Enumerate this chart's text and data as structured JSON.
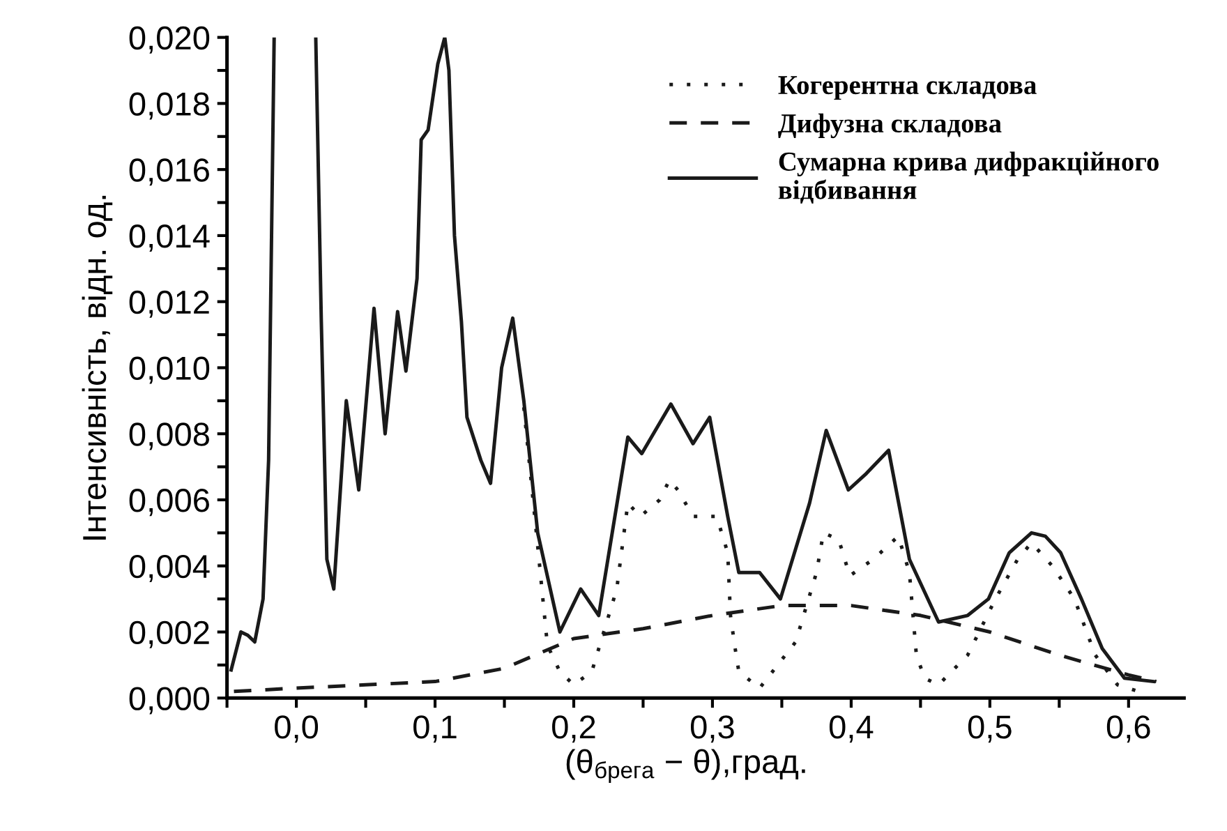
{
  "chart_data": {
    "type": "line",
    "xlabel": "(θ$_{брега}$ − θ),град.",
    "ylabel": "Інтенсивність, відн. од.",
    "xlim": [
      -0.05,
      0.64
    ],
    "ylim": [
      0,
      0.02
    ],
    "xticks": [
      {
        "value": -0.05,
        "label": null
      },
      {
        "value": 0.0,
        "label": "0,0"
      },
      {
        "value": 0.05,
        "label": null
      },
      {
        "value": 0.1,
        "label": "0,1"
      },
      {
        "value": 0.15,
        "label": null
      },
      {
        "value": 0.2,
        "label": "0,2"
      },
      {
        "value": 0.25,
        "label": null
      },
      {
        "value": 0.3,
        "label": "0,3"
      },
      {
        "value": 0.35,
        "label": null
      },
      {
        "value": 0.4,
        "label": "0,4"
      },
      {
        "value": 0.45,
        "label": null
      },
      {
        "value": 0.5,
        "label": "0,5"
      },
      {
        "value": 0.55,
        "label": null
      },
      {
        "value": 0.6,
        "label": "0,6"
      }
    ],
    "yticks": [
      {
        "value": 0,
        "label": "0,000"
      },
      {
        "value": 0.001,
        "label": null
      },
      {
        "value": 0.002,
        "label": "0,002"
      },
      {
        "value": 0.003,
        "label": null
      },
      {
        "value": 0.004,
        "label": "0,004"
      },
      {
        "value": 0.005,
        "label": null
      },
      {
        "value": 0.006,
        "label": "0,006"
      },
      {
        "value": 0.007,
        "label": null
      },
      {
        "value": 0.008,
        "label": "0,008"
      },
      {
        "value": 0.009,
        "label": null
      },
      {
        "value": 0.01,
        "label": "0,010"
      },
      {
        "value": 0.011,
        "label": null
      },
      {
        "value": 0.012,
        "label": "0,012"
      },
      {
        "value": 0.013,
        "label": null
      },
      {
        "value": 0.014,
        "label": "0,014"
      },
      {
        "value": 0.015,
        "label": null
      },
      {
        "value": 0.016,
        "label": "0,016"
      },
      {
        "value": 0.017,
        "label": null
      },
      {
        "value": 0.018,
        "label": "0,018"
      },
      {
        "value": 0.019,
        "label": null
      },
      {
        "value": 0.02,
        "label": "0,020"
      }
    ],
    "grid": false,
    "legend": "top right",
    "marker": "none",
    "series": [
      {
        "name": "Когерентна складова",
        "color": "#1a1a1a",
        "line_style": "dotted",
        "x": [
          0.164,
          0.174,
          0.181,
          0.19,
          0.2,
          0.213,
          0.231,
          0.239,
          0.248,
          0.262,
          0.269,
          0.275,
          0.286,
          0.303,
          0.311,
          0.313,
          0.316,
          0.319,
          0.334,
          0.36,
          0.375,
          0.38,
          0.391,
          0.399,
          0.409,
          0.416,
          0.434,
          0.442,
          0.447,
          0.453,
          0.463,
          0.484,
          0.504,
          0.52,
          0.53,
          0.545,
          0.561,
          0.576,
          0.592,
          0.607
        ],
        "values": [
          0.0088,
          0.0046,
          0.0016,
          0.0008,
          0.0004,
          0.0008,
          0.0033,
          0.0059,
          0.0055,
          0.006,
          0.0066,
          0.0063,
          0.0055,
          0.0055,
          0.0044,
          0.0025,
          0.0016,
          0.0008,
          0.0003,
          0.0017,
          0.0038,
          0.005,
          0.0048,
          0.0037,
          0.004,
          0.0042,
          0.0049,
          0.0038,
          0.0013,
          0.0006,
          0.0004,
          0.0013,
          0.003,
          0.0042,
          0.0047,
          0.004,
          0.003,
          0.0013,
          0.0004,
          0.0002
        ]
      },
      {
        "name": "Дифузна складова",
        "color": "#1a1a1a",
        "line_style": "dashed",
        "x": [
          -0.045,
          0.0,
          0.05,
          0.1,
          0.15,
          0.2,
          0.25,
          0.3,
          0.35,
          0.4,
          0.45,
          0.5,
          0.55,
          0.6,
          0.62
        ],
        "values": [
          0.0002,
          0.0003,
          0.0004,
          0.0005,
          0.0009,
          0.0018,
          0.0021,
          0.0025,
          0.0028,
          0.0028,
          0.0025,
          0.002,
          0.0013,
          0.0007,
          0.0005
        ]
      },
      {
        "name": "Сумарна крива дифракційного\nвідбивання",
        "color": "#1a1a1a",
        "line_style": "solid",
        "x": [
          -0.047,
          -0.04,
          -0.035,
          -0.03,
          -0.024,
          -0.02,
          -0.016,
          0.0,
          0.014,
          0.018,
          0.022,
          0.027,
          0.036,
          0.045,
          0.056,
          0.064,
          0.073,
          0.079,
          0.087,
          0.09,
          0.095,
          0.102,
          0.107,
          0.11,
          0.114,
          0.119,
          0.123,
          0.133,
          0.14,
          0.148,
          0.156,
          0.164,
          0.174,
          0.19,
          0.205,
          0.218,
          0.239,
          0.249,
          0.27,
          0.286,
          0.298,
          0.311,
          0.319,
          0.334,
          0.349,
          0.37,
          0.382,
          0.398,
          0.411,
          0.427,
          0.442,
          0.463,
          0.484,
          0.499,
          0.514,
          0.53,
          0.54,
          0.551,
          0.566,
          0.581,
          0.597,
          0.618
        ],
        "values": [
          0.00085,
          0.002,
          0.0019,
          0.0017,
          0.003,
          0.0072,
          0.02,
          null,
          0.02,
          0.0114,
          0.0042,
          0.0033,
          0.009,
          0.0063,
          0.0118,
          0.008,
          0.0117,
          0.0099,
          0.0127,
          0.0169,
          0.0172,
          0.0192,
          0.02,
          0.019,
          0.014,
          0.0114,
          0.0085,
          0.0072,
          0.0065,
          0.01,
          0.0115,
          0.009,
          0.005,
          0.002,
          0.0033,
          0.0025,
          0.0079,
          0.0074,
          0.0089,
          0.0077,
          0.0085,
          0.0055,
          0.0038,
          0.0038,
          0.003,
          0.0059,
          0.0081,
          0.0063,
          0.0068,
          0.0075,
          0.0042,
          0.0023,
          0.0025,
          0.003,
          0.0044,
          0.005,
          0.0049,
          0.0044,
          0.003,
          0.0015,
          0.0006,
          0.0005
        ]
      }
    ]
  }
}
